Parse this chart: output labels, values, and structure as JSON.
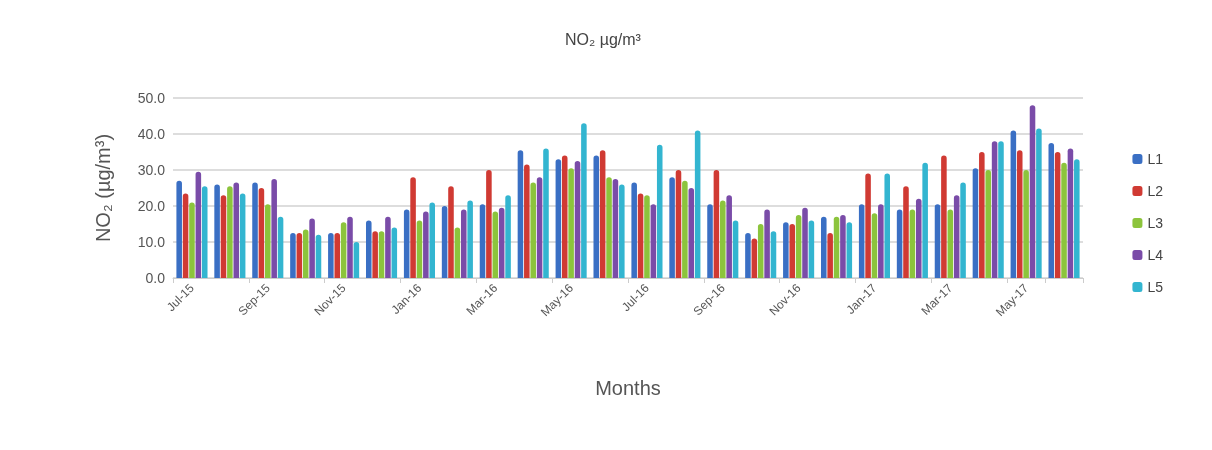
{
  "chart_data": {
    "type": "bar",
    "title": "NO₂ µg/m³",
    "xlabel": "Months",
    "ylabel": "NO₂ (µg/m³)",
    "categories": [
      "Jul-15",
      null,
      "Sep-15",
      null,
      "Nov-15",
      null,
      "Jan-16",
      null,
      "Mar-16",
      null,
      "May-16",
      null,
      "Jul-16",
      null,
      "Sep-16",
      null,
      "Nov-16",
      null,
      "Jan-17",
      null,
      "Mar-17",
      null,
      "May-17",
      null
    ],
    "series": [
      {
        "name": "L1",
        "color": "#3a6fc4",
        "values": [
          27,
          26,
          26.5,
          12.5,
          12.5,
          16,
          19,
          20,
          20.5,
          35.5,
          33,
          34,
          26.5,
          28,
          20.5,
          12.5,
          15.5,
          17,
          20.5,
          19,
          20.5,
          30.5,
          41,
          37.5
        ]
      },
      {
        "name": "L2",
        "color": "#d03a33",
        "values": [
          23.5,
          23,
          25,
          12.5,
          12.5,
          13,
          28,
          25.5,
          30,
          31.5,
          34,
          35.5,
          23.5,
          30,
          30,
          11,
          15,
          12.5,
          29,
          25.5,
          34,
          35,
          35.5,
          35
        ]
      },
      {
        "name": "L3",
        "color": "#8cc43c",
        "values": [
          21,
          25.5,
          20.5,
          13.5,
          15.5,
          13,
          16,
          14,
          18.5,
          26.5,
          30.5,
          28,
          23,
          27,
          21.5,
          15,
          17.5,
          17,
          18,
          19,
          19,
          30,
          30,
          32
        ]
      },
      {
        "name": "L4",
        "color": "#7a4ca8",
        "values": [
          29.5,
          26.5,
          27.5,
          16.5,
          17,
          17,
          18.5,
          19,
          19.5,
          28,
          32.5,
          27.5,
          20.5,
          25,
          23,
          19,
          19.5,
          17.5,
          20.5,
          22,
          23,
          38,
          48,
          36
        ]
      },
      {
        "name": "L5",
        "color": "#33b5d0",
        "values": [
          25.5,
          23.5,
          17,
          12,
          10,
          14,
          21,
          21.5,
          23,
          36,
          43,
          26,
          37,
          41,
          16,
          13,
          16,
          15.5,
          29,
          32,
          26.5,
          38,
          41.5,
          33
        ]
      }
    ],
    "ylim": [
      0,
      50
    ],
    "yticks": [
      {
        "value": 0,
        "label": "0.0"
      },
      {
        "value": 10,
        "label": "10.0"
      },
      {
        "value": 20,
        "label": "20.0"
      },
      {
        "value": 30,
        "label": "30.0"
      },
      {
        "value": 40,
        "label": "40.0"
      },
      {
        "value": 50,
        "label": "50.0"
      }
    ],
    "grid": "y",
    "legend": "right"
  }
}
